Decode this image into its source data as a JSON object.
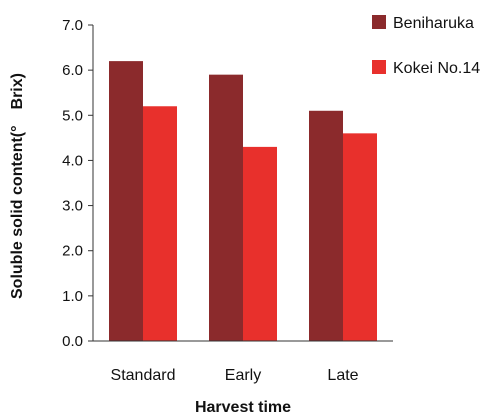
{
  "chart_data": {
    "type": "bar",
    "categories": [
      "Standard",
      "Early",
      "Late"
    ],
    "series": [
      {
        "name": "Beniharuka",
        "values": [
          6.2,
          5.9,
          5.1
        ],
        "color": "#8b2a2c"
      },
      {
        "name": "Kokei No.14",
        "values": [
          5.2,
          4.3,
          4.6
        ],
        "color": "#e8302c"
      }
    ],
    "ylim": [
      0,
      7.0
    ],
    "yticks": [
      "0.0",
      "1.0",
      "2.0",
      "3.0",
      "4.0",
      "5.0",
      "6.0",
      "7.0"
    ],
    "xlabel": "Harvest time",
    "ylabel": "Soluble solid content(°　Brix)",
    "legend_position": "top-right",
    "grid": false
  }
}
